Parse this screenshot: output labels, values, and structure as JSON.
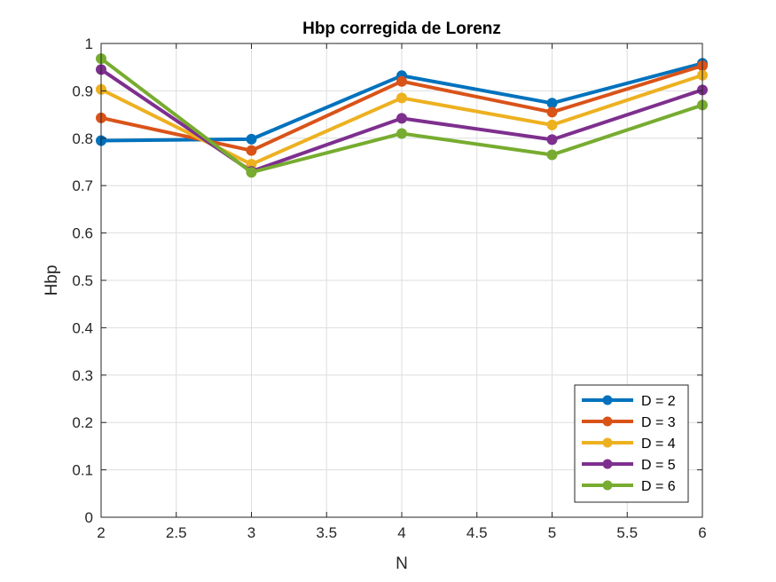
{
  "chart_data": {
    "type": "line",
    "title": "Hbp corregida de Lorenz",
    "xlabel": "N",
    "ylabel": "Hbp",
    "xlim": [
      2,
      6
    ],
    "ylim": [
      0,
      1
    ],
    "grid": true,
    "legend_position": "bottom-right",
    "xticks": [
      "2",
      "2.5",
      "3",
      "3.5",
      "4",
      "4.5",
      "5",
      "5.5",
      "6"
    ],
    "yticks": [
      "0",
      "0.1",
      "0.2",
      "0.3",
      "0.4",
      "0.5",
      "0.6",
      "0.7",
      "0.8",
      "0.9",
      "1"
    ],
    "xtick_values": [
      2,
      2.5,
      3,
      3.5,
      4,
      4.5,
      5,
      5.5,
      6
    ],
    "ytick_values": [
      0,
      0.1,
      0.2,
      0.3,
      0.4,
      0.5,
      0.6,
      0.7,
      0.8,
      0.9,
      1
    ],
    "x": [
      2,
      3,
      4,
      5,
      6
    ],
    "series": [
      {
        "name": "D = 2",
        "color": "#0072BD",
        "values": [
          0.795,
          0.798,
          0.932,
          0.874,
          0.958
        ]
      },
      {
        "name": "D = 3",
        "color": "#D95319",
        "values": [
          0.843,
          0.774,
          0.92,
          0.855,
          0.953
        ]
      },
      {
        "name": "D = 4",
        "color": "#EDB120",
        "values": [
          0.903,
          0.745,
          0.885,
          0.828,
          0.933
        ]
      },
      {
        "name": "D = 5",
        "color": "#7E2F8E",
        "values": [
          0.945,
          0.73,
          0.842,
          0.797,
          0.902
        ]
      },
      {
        "name": "D = 6",
        "color": "#77AC30",
        "values": [
          0.968,
          0.728,
          0.81,
          0.765,
          0.87
        ]
      }
    ]
  }
}
